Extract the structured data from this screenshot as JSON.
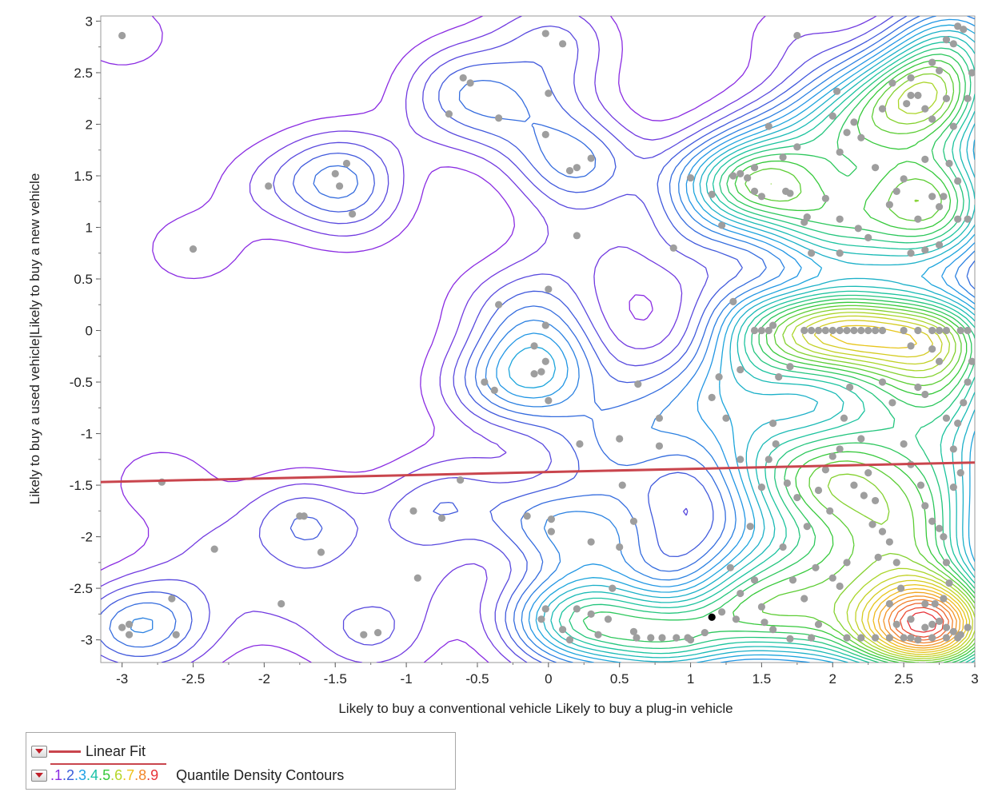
{
  "chart_data": {
    "type": "scatter",
    "title": "",
    "xlabel": "Likely to buy a conventional vehicle Likely to buy a plug-in vehicle",
    "ylabel": "Likely to buy a used vehicle|Likely to buy a new vehicle",
    "xlim": [
      -3.15,
      3.0
    ],
    "ylim": [
      -3.22,
      3.05
    ],
    "x_ticks": [
      -3,
      -2.5,
      -2,
      -1.5,
      -1,
      -0.5,
      0,
      0.5,
      1,
      1.5,
      2,
      2.5,
      3
    ],
    "y_ticks": [
      -3,
      -2.5,
      -2,
      -1.5,
      -1,
      -0.5,
      0,
      0.5,
      1,
      1.5,
      2,
      2.5,
      3
    ],
    "grid": false,
    "colors": {
      "points": "#9e9e9e",
      "selected_point": "#000000",
      "fit_line": "#c9454d",
      "contour_scale": [
        "#8a2be2",
        "#3a5ddb",
        "#1ea0e6",
        "#19c2a6",
        "#36c93b",
        "#b4d628",
        "#f0c21a",
        "#f2862a",
        "#e8333a"
      ]
    },
    "linear_fit": {
      "x": [
        -3.15,
        3.0
      ],
      "y": [
        -1.47,
        -1.28
      ]
    },
    "selected_point": [
      1.15,
      -2.78
    ],
    "points": [
      [
        -3.0,
        2.86
      ],
      [
        -2.5,
        0.79
      ],
      [
        -1.97,
        1.4
      ],
      [
        -1.5,
        1.52
      ],
      [
        -1.47,
        1.4
      ],
      [
        -1.42,
        1.62
      ],
      [
        -1.38,
        1.13
      ],
      [
        -3.0,
        -2.88
      ],
      [
        -2.95,
        -2.85
      ],
      [
        -2.95,
        -2.95
      ],
      [
        -2.72,
        -1.47
      ],
      [
        -2.65,
        -2.6
      ],
      [
        -2.62,
        -2.95
      ],
      [
        -2.35,
        -2.12
      ],
      [
        -1.88,
        -2.65
      ],
      [
        -1.75,
        -1.8
      ],
      [
        -1.72,
        -1.8
      ],
      [
        -1.6,
        -2.15
      ],
      [
        -1.3,
        -2.95
      ],
      [
        -1.2,
        -2.93
      ],
      [
        -0.95,
        -1.75
      ],
      [
        -0.92,
        -2.4
      ],
      [
        -0.75,
        -1.82
      ],
      [
        -0.62,
        -1.45
      ],
      [
        -0.7,
        2.1
      ],
      [
        -0.6,
        2.45
      ],
      [
        -0.55,
        2.4
      ],
      [
        -0.35,
        2.06
      ],
      [
        -0.05,
        -2.8
      ],
      [
        -0.02,
        -2.7
      ],
      [
        -0.02,
        2.88
      ],
      [
        0.0,
        2.3
      ],
      [
        0.1,
        2.78
      ],
      [
        -0.02,
        1.9
      ],
      [
        0.15,
        1.55
      ],
      [
        0.2,
        1.58
      ],
      [
        0.3,
        1.67
      ],
      [
        0.2,
        0.92
      ],
      [
        0.88,
        0.8
      ],
      [
        -0.35,
        0.25
      ],
      [
        -0.45,
        -0.5
      ],
      [
        -0.38,
        -0.58
      ],
      [
        -0.1,
        -0.15
      ],
      [
        -0.05,
        -0.4
      ],
      [
        0.0,
        0.4
      ],
      [
        -0.02,
        0.05
      ],
      [
        -0.02,
        -0.3
      ],
      [
        -0.1,
        -0.42
      ],
      [
        0.0,
        -0.68
      ],
      [
        0.22,
        -1.1
      ],
      [
        0.5,
        -1.05
      ],
      [
        0.63,
        -0.52
      ],
      [
        0.78,
        -0.85
      ],
      [
        0.78,
        -1.12
      ],
      [
        0.52,
        -1.5
      ],
      [
        0.6,
        -1.85
      ],
      [
        0.5,
        -2.1
      ],
      [
        -0.15,
        -1.8
      ],
      [
        0.02,
        -1.83
      ],
      [
        0.02,
        -1.95
      ],
      [
        0.3,
        -2.05
      ],
      [
        0.45,
        -2.5
      ],
      [
        0.1,
        -2.9
      ],
      [
        0.15,
        -3.0
      ],
      [
        0.2,
        -2.7
      ],
      [
        0.3,
        -2.75
      ],
      [
        0.35,
        -2.95
      ],
      [
        0.42,
        -2.8
      ],
      [
        0.6,
        -2.92
      ],
      [
        0.62,
        -2.98
      ],
      [
        0.72,
        -2.98
      ],
      [
        0.8,
        -2.98
      ],
      [
        0.9,
        -2.98
      ],
      [
        0.98,
        -2.98
      ],
      [
        1.0,
        -3.0
      ],
      [
        1.1,
        -2.93
      ],
      [
        1.0,
        1.48
      ],
      [
        1.15,
        1.32
      ],
      [
        1.22,
        1.02
      ],
      [
        1.3,
        1.5
      ],
      [
        1.35,
        1.52
      ],
      [
        1.4,
        1.48
      ],
      [
        1.45,
        1.35
      ],
      [
        1.45,
        1.58
      ],
      [
        1.5,
        1.3
      ],
      [
        1.55,
        1.98
      ],
      [
        1.65,
        1.68
      ],
      [
        1.67,
        1.35
      ],
      [
        1.7,
        1.33
      ],
      [
        1.75,
        1.78
      ],
      [
        1.8,
        1.05
      ],
      [
        1.82,
        1.1
      ],
      [
        1.85,
        0.75
      ],
      [
        1.95,
        1.28
      ],
      [
        2.0,
        2.08
      ],
      [
        2.03,
        2.32
      ],
      [
        2.05,
        0.75
      ],
      [
        2.05,
        1.08
      ],
      [
        2.1,
        1.92
      ],
      [
        2.18,
        0.99
      ],
      [
        2.25,
        0.9
      ],
      [
        2.3,
        1.58
      ],
      [
        2.35,
        2.15
      ],
      [
        2.4,
        1.22
      ],
      [
        2.45,
        1.35
      ],
      [
        2.5,
        1.47
      ],
      [
        2.52,
        2.2
      ],
      [
        2.55,
        2.28
      ],
      [
        2.6,
        1.08
      ],
      [
        2.65,
        1.66
      ],
      [
        2.7,
        1.3
      ],
      [
        2.75,
        1.2
      ],
      [
        2.78,
        1.3
      ],
      [
        2.8,
        2.25
      ],
      [
        2.82,
        1.62
      ],
      [
        2.85,
        1.98
      ],
      [
        2.88,
        1.45
      ],
      [
        2.7,
        2.6
      ],
      [
        2.75,
        2.52
      ],
      [
        2.8,
        2.82
      ],
      [
        2.85,
        2.78
      ],
      [
        2.88,
        2.95
      ],
      [
        2.92,
        2.92
      ],
      [
        2.55,
        2.45
      ],
      [
        2.6,
        2.28
      ],
      [
        2.65,
        2.15
      ],
      [
        2.7,
        2.05
      ],
      [
        2.42,
        2.4
      ],
      [
        1.75,
        2.86
      ],
      [
        2.15,
        2.02
      ],
      [
        2.2,
        1.87
      ],
      [
        2.05,
        1.73
      ],
      [
        2.55,
        0.75
      ],
      [
        2.65,
        0.78
      ],
      [
        2.75,
        0.83
      ],
      [
        2.88,
        1.08
      ],
      [
        2.95,
        1.08
      ],
      [
        2.95,
        2.25
      ],
      [
        2.98,
        2.5
      ],
      [
        1.58,
        0.05
      ],
      [
        1.62,
        -0.45
      ],
      [
        1.58,
        -0.9
      ],
      [
        1.7,
        -0.35
      ],
      [
        1.75,
        -1.62
      ],
      [
        1.82,
        -1.9
      ],
      [
        1.45,
        -2.42
      ],
      [
        1.5,
        -2.68
      ],
      [
        1.52,
        -2.83
      ],
      [
        1.58,
        -2.9
      ],
      [
        1.7,
        -2.99
      ],
      [
        1.85,
        -2.98
      ],
      [
        1.9,
        -2.85
      ],
      [
        2.1,
        -2.98
      ],
      [
        2.2,
        -2.98
      ],
      [
        2.3,
        -2.98
      ],
      [
        2.4,
        -2.98
      ],
      [
        2.5,
        -2.98
      ],
      [
        2.55,
        -2.98
      ],
      [
        2.65,
        -2.88
      ],
      [
        2.7,
        -2.85
      ],
      [
        2.75,
        -2.82
      ],
      [
        2.8,
        -2.88
      ],
      [
        2.85,
        -2.92
      ],
      [
        2.9,
        -2.95
      ],
      [
        2.95,
        -2.88
      ],
      [
        2.72,
        -2.65
      ],
      [
        2.78,
        -2.6
      ],
      [
        2.65,
        -2.65
      ],
      [
        2.55,
        -2.8
      ],
      [
        2.48,
        -2.5
      ],
      [
        2.45,
        -2.25
      ],
      [
        2.4,
        -2.05
      ],
      [
        2.32,
        -2.2
      ],
      [
        2.28,
        -1.88
      ],
      [
        2.22,
        -1.6
      ],
      [
        2.15,
        -1.5
      ],
      [
        2.1,
        -2.25
      ],
      [
        2.05,
        -2.48
      ],
      [
        2.0,
        -2.4
      ],
      [
        1.98,
        -1.75
      ],
      [
        1.95,
        -1.35
      ],
      [
        2.05,
        -1.15
      ],
      [
        2.35,
        -0.5
      ],
      [
        2.42,
        -0.7
      ],
      [
        2.5,
        -1.1
      ],
      [
        2.55,
        -1.3
      ],
      [
        2.62,
        -1.5
      ],
      [
        2.65,
        -1.7
      ],
      [
        2.7,
        -1.85
      ],
      [
        2.75,
        -1.92
      ],
      [
        2.78,
        -2.0
      ],
      [
        2.8,
        -2.25
      ],
      [
        2.82,
        -2.45
      ],
      [
        2.85,
        -1.52
      ],
      [
        2.88,
        -0.9
      ],
      [
        2.92,
        -0.7
      ],
      [
        2.95,
        -0.5
      ],
      [
        2.98,
        -0.3
      ],
      [
        2.7,
        -0.18
      ],
      [
        2.75,
        -0.3
      ],
      [
        2.8,
        -0.85
      ],
      [
        2.85,
        -1.15
      ],
      [
        2.9,
        -1.38
      ],
      [
        2.6,
        -0.55
      ],
      [
        2.55,
        -0.15
      ],
      [
        2.5,
        0.0
      ],
      [
        2.6,
        0.0
      ],
      [
        2.7,
        0.0
      ],
      [
        2.75,
        0.0
      ],
      [
        2.8,
        0.0
      ],
      [
        2.9,
        0.0
      ],
      [
        2.95,
        0.0
      ],
      [
        2.65,
        -0.62
      ],
      [
        1.45,
        0.0
      ],
      [
        1.5,
        0.0
      ],
      [
        1.55,
        0.0
      ],
      [
        1.8,
        0.0
      ],
      [
        1.85,
        0.0
      ],
      [
        1.9,
        0.0
      ],
      [
        1.95,
        0.0
      ],
      [
        2.0,
        0.0
      ],
      [
        2.05,
        0.0
      ],
      [
        2.1,
        0.0
      ],
      [
        2.15,
        0.0
      ],
      [
        2.2,
        0.0
      ],
      [
        2.25,
        0.0
      ],
      [
        2.3,
        0.0
      ],
      [
        2.35,
        0.0
      ],
      [
        1.3,
        0.28
      ],
      [
        1.35,
        -0.38
      ],
      [
        1.2,
        -0.45
      ],
      [
        1.15,
        -0.65
      ],
      [
        1.25,
        -0.85
      ],
      [
        1.35,
        -1.25
      ],
      [
        1.5,
        -1.52
      ],
      [
        1.6,
        -1.1
      ],
      [
        1.68,
        -1.48
      ],
      [
        1.28,
        -2.3
      ],
      [
        1.32,
        -2.8
      ],
      [
        1.22,
        -2.73
      ],
      [
        1.35,
        -2.55
      ],
      [
        1.42,
        -1.9
      ],
      [
        1.55,
        -1.25
      ],
      [
        1.65,
        -2.1
      ],
      [
        1.72,
        -2.42
      ],
      [
        1.8,
        -2.6
      ],
      [
        1.88,
        -2.3
      ],
      [
        1.9,
        -1.55
      ],
      [
        2.0,
        -1.22
      ],
      [
        2.08,
        -0.85
      ],
      [
        2.12,
        -0.55
      ],
      [
        2.2,
        -1.05
      ],
      [
        2.25,
        -1.38
      ],
      [
        2.3,
        -1.65
      ],
      [
        2.35,
        -1.95
      ],
      [
        2.4,
        -2.65
      ],
      [
        2.45,
        -2.85
      ],
      [
        2.6,
        -3.0
      ],
      [
        2.7,
        -2.98
      ],
      [
        2.8,
        -2.98
      ],
      [
        2.88,
        -2.98
      ]
    ]
  },
  "legend": {
    "fit_label": "Linear Fit",
    "contour_label": "Quantile Density Contours",
    "quantile_labels": [
      ".1",
      ".2",
      ".3",
      ".4",
      ".5",
      ".6",
      ".7",
      ".8",
      ".9"
    ]
  }
}
